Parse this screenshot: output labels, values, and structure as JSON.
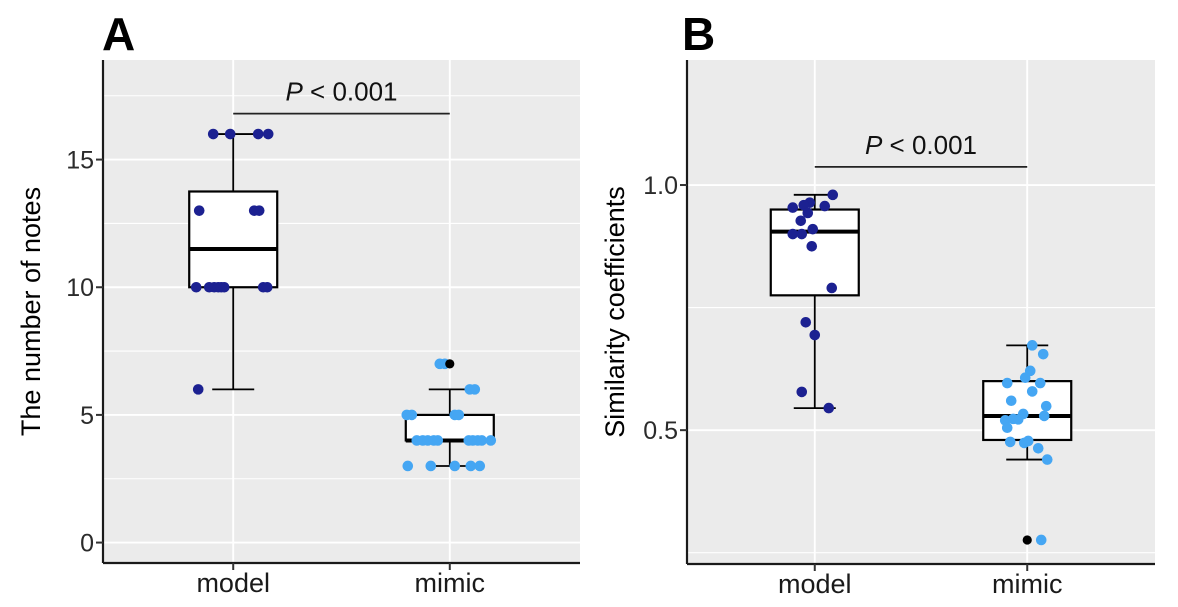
{
  "figure": {
    "background": "#ffffff",
    "panel_background": "#ebebeb",
    "grid_color": "#ffffff",
    "axis_color": "#1a1a1a",
    "box_fill": "#ffffff",
    "box_stroke": "#000000"
  },
  "chart_data": [
    {
      "panel_label": "A",
      "type": "boxplot",
      "title": "",
      "xlabel": "",
      "ylabel": "The number of notes",
      "categories": [
        "model",
        "mimic"
      ],
      "ytick_values": [
        0,
        5,
        10,
        15
      ],
      "ytick_labels": [
        "0",
        "5",
        "10",
        "15"
      ],
      "minor_gridlines": [
        2.5,
        7.5,
        12.5,
        17.5
      ],
      "ylim": [
        -0.8,
        18.9
      ],
      "grid": true,
      "legend": false,
      "significance": {
        "label_italic": "P",
        "label_rest": " < 0.001",
        "bar_value": 16.8
      },
      "outlier_color": "#000000",
      "series": [
        {
          "name": "model",
          "color": "#1c2191",
          "box": {
            "q1": 10,
            "median": 11.5,
            "q3": 13.75,
            "whisker_low": 6,
            "whisker_high": 16
          },
          "outliers": [],
          "points": [
            [
              -20,
              16
            ],
            [
              -3,
              16
            ],
            [
              25,
              16
            ],
            [
              35,
              16
            ],
            [
              -34,
              13
            ],
            [
              21,
              13
            ],
            [
              26,
              13
            ],
            [
              -37,
              10
            ],
            [
              -24,
              10
            ],
            [
              -19,
              10
            ],
            [
              -15,
              10
            ],
            [
              -12,
              10
            ],
            [
              -9,
              10
            ],
            [
              30,
              10
            ],
            [
              34,
              10
            ],
            [
              -35,
              6
            ]
          ]
        },
        {
          "name": "mimic",
          "color": "#45a6f3",
          "box": {
            "q1": 4,
            "median": 4,
            "q3": 5,
            "whisker_low": 3,
            "whisker_high": 6
          },
          "outliers": [
            7
          ],
          "points": [
            [
              -10,
              7
            ],
            [
              -5,
              7
            ],
            [
              20,
              6
            ],
            [
              25,
              6
            ],
            [
              -43,
              5
            ],
            [
              -38,
              5
            ],
            [
              5,
              5
            ],
            [
              9,
              5
            ],
            [
              -33,
              4
            ],
            [
              -27,
              4
            ],
            [
              -22,
              4
            ],
            [
              -16,
              4
            ],
            [
              -12,
              4
            ],
            [
              19,
              4
            ],
            [
              23,
              4
            ],
            [
              28,
              4
            ],
            [
              32,
              4
            ],
            [
              41,
              4
            ],
            [
              -42,
              3
            ],
            [
              -19,
              3
            ],
            [
              5,
              3
            ],
            [
              21,
              3
            ],
            [
              30,
              3
            ]
          ]
        }
      ]
    },
    {
      "panel_label": "B",
      "type": "boxplot",
      "title": "",
      "xlabel": "",
      "ylabel": "Similarity coefficients",
      "categories": [
        "model",
        "mimic"
      ],
      "ytick_values": [
        0.5,
        1.0
      ],
      "ytick_labels": [
        "0.5",
        "1.0"
      ],
      "minor_gridlines": [
        0.25,
        0.75
      ],
      "ylim": [
        0.227,
        1.255
      ],
      "grid": true,
      "legend": false,
      "significance": {
        "label_italic": "P",
        "label_rest": " < 0.001",
        "bar_value": 1.037
      },
      "outlier_color": "#000000",
      "series": [
        {
          "name": "model",
          "color": "#1c2191",
          "box": {
            "q1": 0.775,
            "median": 0.905,
            "q3": 0.95,
            "whisker_low": 0.545,
            "whisker_high": 0.98
          },
          "outliers": [],
          "points": [
            [
              18,
              0.98
            ],
            [
              -5,
              0.964
            ],
            [
              -11,
              0.959
            ],
            [
              10,
              0.957
            ],
            [
              -22,
              0.954
            ],
            [
              -7,
              0.943
            ],
            [
              -14,
              0.927
            ],
            [
              -2,
              0.91
            ],
            [
              -22,
              0.9
            ],
            [
              -13,
              0.9
            ],
            [
              -3,
              0.875
            ],
            [
              17,
              0.79
            ],
            [
              -9,
              0.72
            ],
            [
              0,
              0.694
            ],
            [
              -13,
              0.578
            ],
            [
              14,
              0.545
            ]
          ]
        },
        {
          "name": "mimic",
          "color": "#45a6f3",
          "box": {
            "q1": 0.48,
            "median": 0.529,
            "q3": 0.6,
            "whisker_low": 0.44,
            "whisker_high": 0.673
          },
          "outliers": [
            0.276
          ],
          "points": [
            [
              5,
              0.673
            ],
            [
              16,
              0.655
            ],
            [
              3,
              0.621
            ],
            [
              -2,
              0.607
            ],
            [
              -20,
              0.596
            ],
            [
              13,
              0.596
            ],
            [
              5,
              0.579
            ],
            [
              -16,
              0.56
            ],
            [
              19,
              0.549
            ],
            [
              -4,
              0.533
            ],
            [
              17,
              0.529
            ],
            [
              -9,
              0.522
            ],
            [
              -22,
              0.52
            ],
            [
              -14,
              0.523
            ],
            [
              -20,
              0.505
            ],
            [
              1,
              0.478
            ],
            [
              -17,
              0.476
            ],
            [
              -3,
              0.474
            ],
            [
              11,
              0.463
            ],
            [
              20,
              0.44
            ],
            [
              14,
              0.276
            ]
          ]
        }
      ]
    }
  ]
}
